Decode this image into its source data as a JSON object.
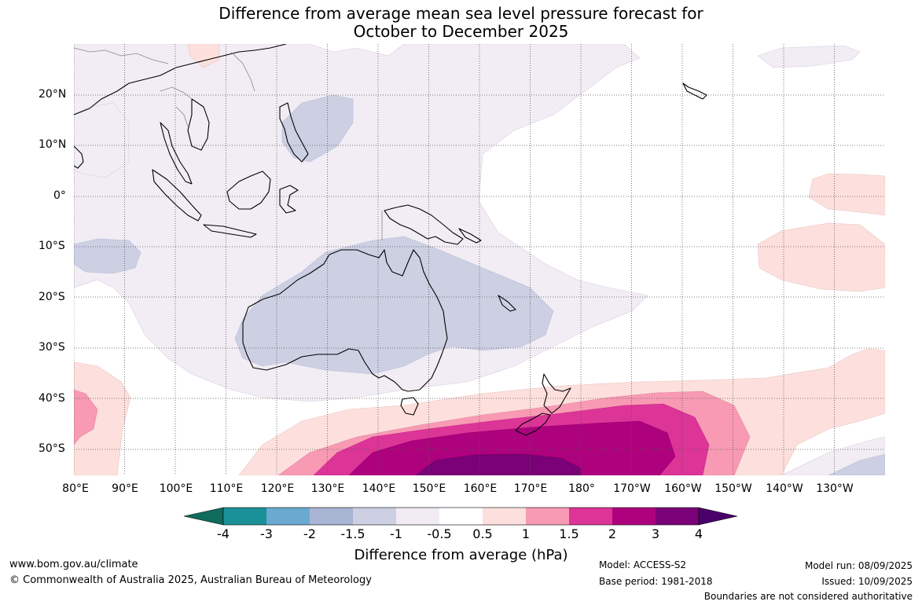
{
  "title_line1": "Difference from average mean sea level pressure forecast for",
  "title_line2": "October to December 2025",
  "lat_labels": [
    "20°N",
    "10°N",
    "0°",
    "10°S",
    "20°S",
    "30°S",
    "40°S",
    "50°S"
  ],
  "lon_labels": [
    "80°E",
    "90°E",
    "100°E",
    "110°E",
    "120°E",
    "130°E",
    "140°E",
    "150°E",
    "160°E",
    "170°E",
    "180°",
    "170°W",
    "160°W",
    "150°W",
    "140°W",
    "130°W"
  ],
  "colorbar": {
    "label": "Difference from average (hPa)",
    "ticks": [
      "-4",
      "-3",
      "-2",
      "-1.5",
      "-1",
      "-0.5",
      "0.5",
      "1",
      "1.5",
      "2",
      "3",
      "4"
    ],
    "colors": [
      "#0f6b5c",
      "#1a9198",
      "#6aaad1",
      "#a8b5d3",
      "#cdd0e3",
      "#f1ebf4",
      "#ffffff",
      "#fde0dd",
      "#f89ab4",
      "#dd3497",
      "#ae017e",
      "#7a0177",
      "#49006a"
    ]
  },
  "footer": {
    "website": "www.bom.gov.au/climate",
    "copyright": "© Commonwealth of Australia 2025, Australian Bureau of Meteorology",
    "model": "Model: ACCESS-S2",
    "base_period": "Base period: 1981-2018",
    "model_run": "Model run: 08/09/2025",
    "issued": "Issued: 10/09/2025",
    "disclaimer": "Boundaries are not considered authoritative"
  }
}
